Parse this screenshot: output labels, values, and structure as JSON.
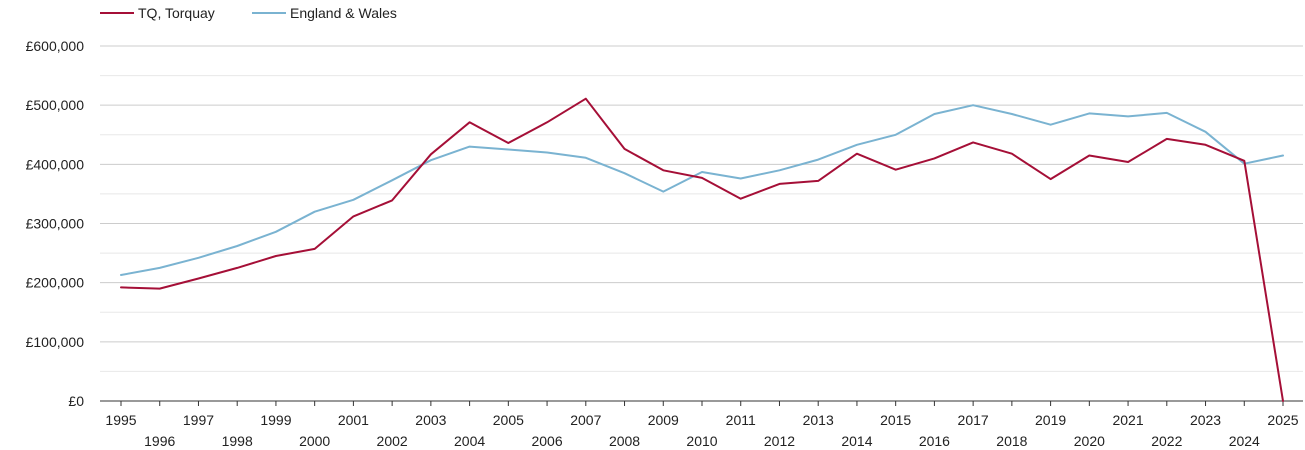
{
  "chart_data": {
    "type": "line",
    "title": "",
    "xlabel": "",
    "ylabel": "",
    "ylim": [
      0,
      600000
    ],
    "grid": true,
    "legend_position": "top-left",
    "y_ticks": [
      {
        "value": 0,
        "label": "£0"
      },
      {
        "value": 100000,
        "label": "£100,000"
      },
      {
        "value": 200000,
        "label": "£200,000"
      },
      {
        "value": 300000,
        "label": "£300,000"
      },
      {
        "value": 400000,
        "label": "£400,000"
      },
      {
        "value": 500000,
        "label": "£500,000"
      },
      {
        "value": 600000,
        "label": "£600,000"
      }
    ],
    "x": [
      1995,
      1996,
      1997,
      1998,
      1999,
      2000,
      2001,
      2002,
      2003,
      2004,
      2005,
      2006,
      2007,
      2008,
      2009,
      2010,
      2011,
      2012,
      2013,
      2014,
      2015,
      2016,
      2017,
      2018,
      2019,
      2020,
      2021,
      2022,
      2023,
      2024,
      2025
    ],
    "x_tick_labels": [
      "1995",
      "1996",
      "1997",
      "1998",
      "1999",
      "2000",
      "2001",
      "2002",
      "2003",
      "2004",
      "2005",
      "2006",
      "2007",
      "2008",
      "2009",
      "2010",
      "2011",
      "2012",
      "2013",
      "2014",
      "2015",
      "2016",
      "2017",
      "2018",
      "2019",
      "2020",
      "2021",
      "2022",
      "2023",
      "2024",
      "2025"
    ],
    "series": [
      {
        "name": "TQ, Torquay",
        "color": "#a50f37",
        "values": [
          192000,
          190000,
          207000,
          225000,
          245000,
          257000,
          312000,
          339000,
          417000,
          471000,
          436000,
          471000,
          511000,
          426000,
          390000,
          377000,
          342000,
          367000,
          372000,
          418000,
          391000,
          410000,
          437000,
          418000,
          375000,
          415000,
          404000,
          443000,
          433000,
          406000,
          0
        ]
      },
      {
        "name": "England & Wales",
        "color": "#7ab3d1",
        "values": [
          213000,
          225000,
          242000,
          262000,
          286000,
          320000,
          340000,
          373000,
          407000,
          430000,
          425000,
          420000,
          411000,
          385000,
          354000,
          387000,
          376000,
          390000,
          408000,
          433000,
          450000,
          485000,
          500000,
          485000,
          467000,
          486000,
          481000,
          487000,
          455000,
          401000,
          415000
        ]
      }
    ]
  }
}
